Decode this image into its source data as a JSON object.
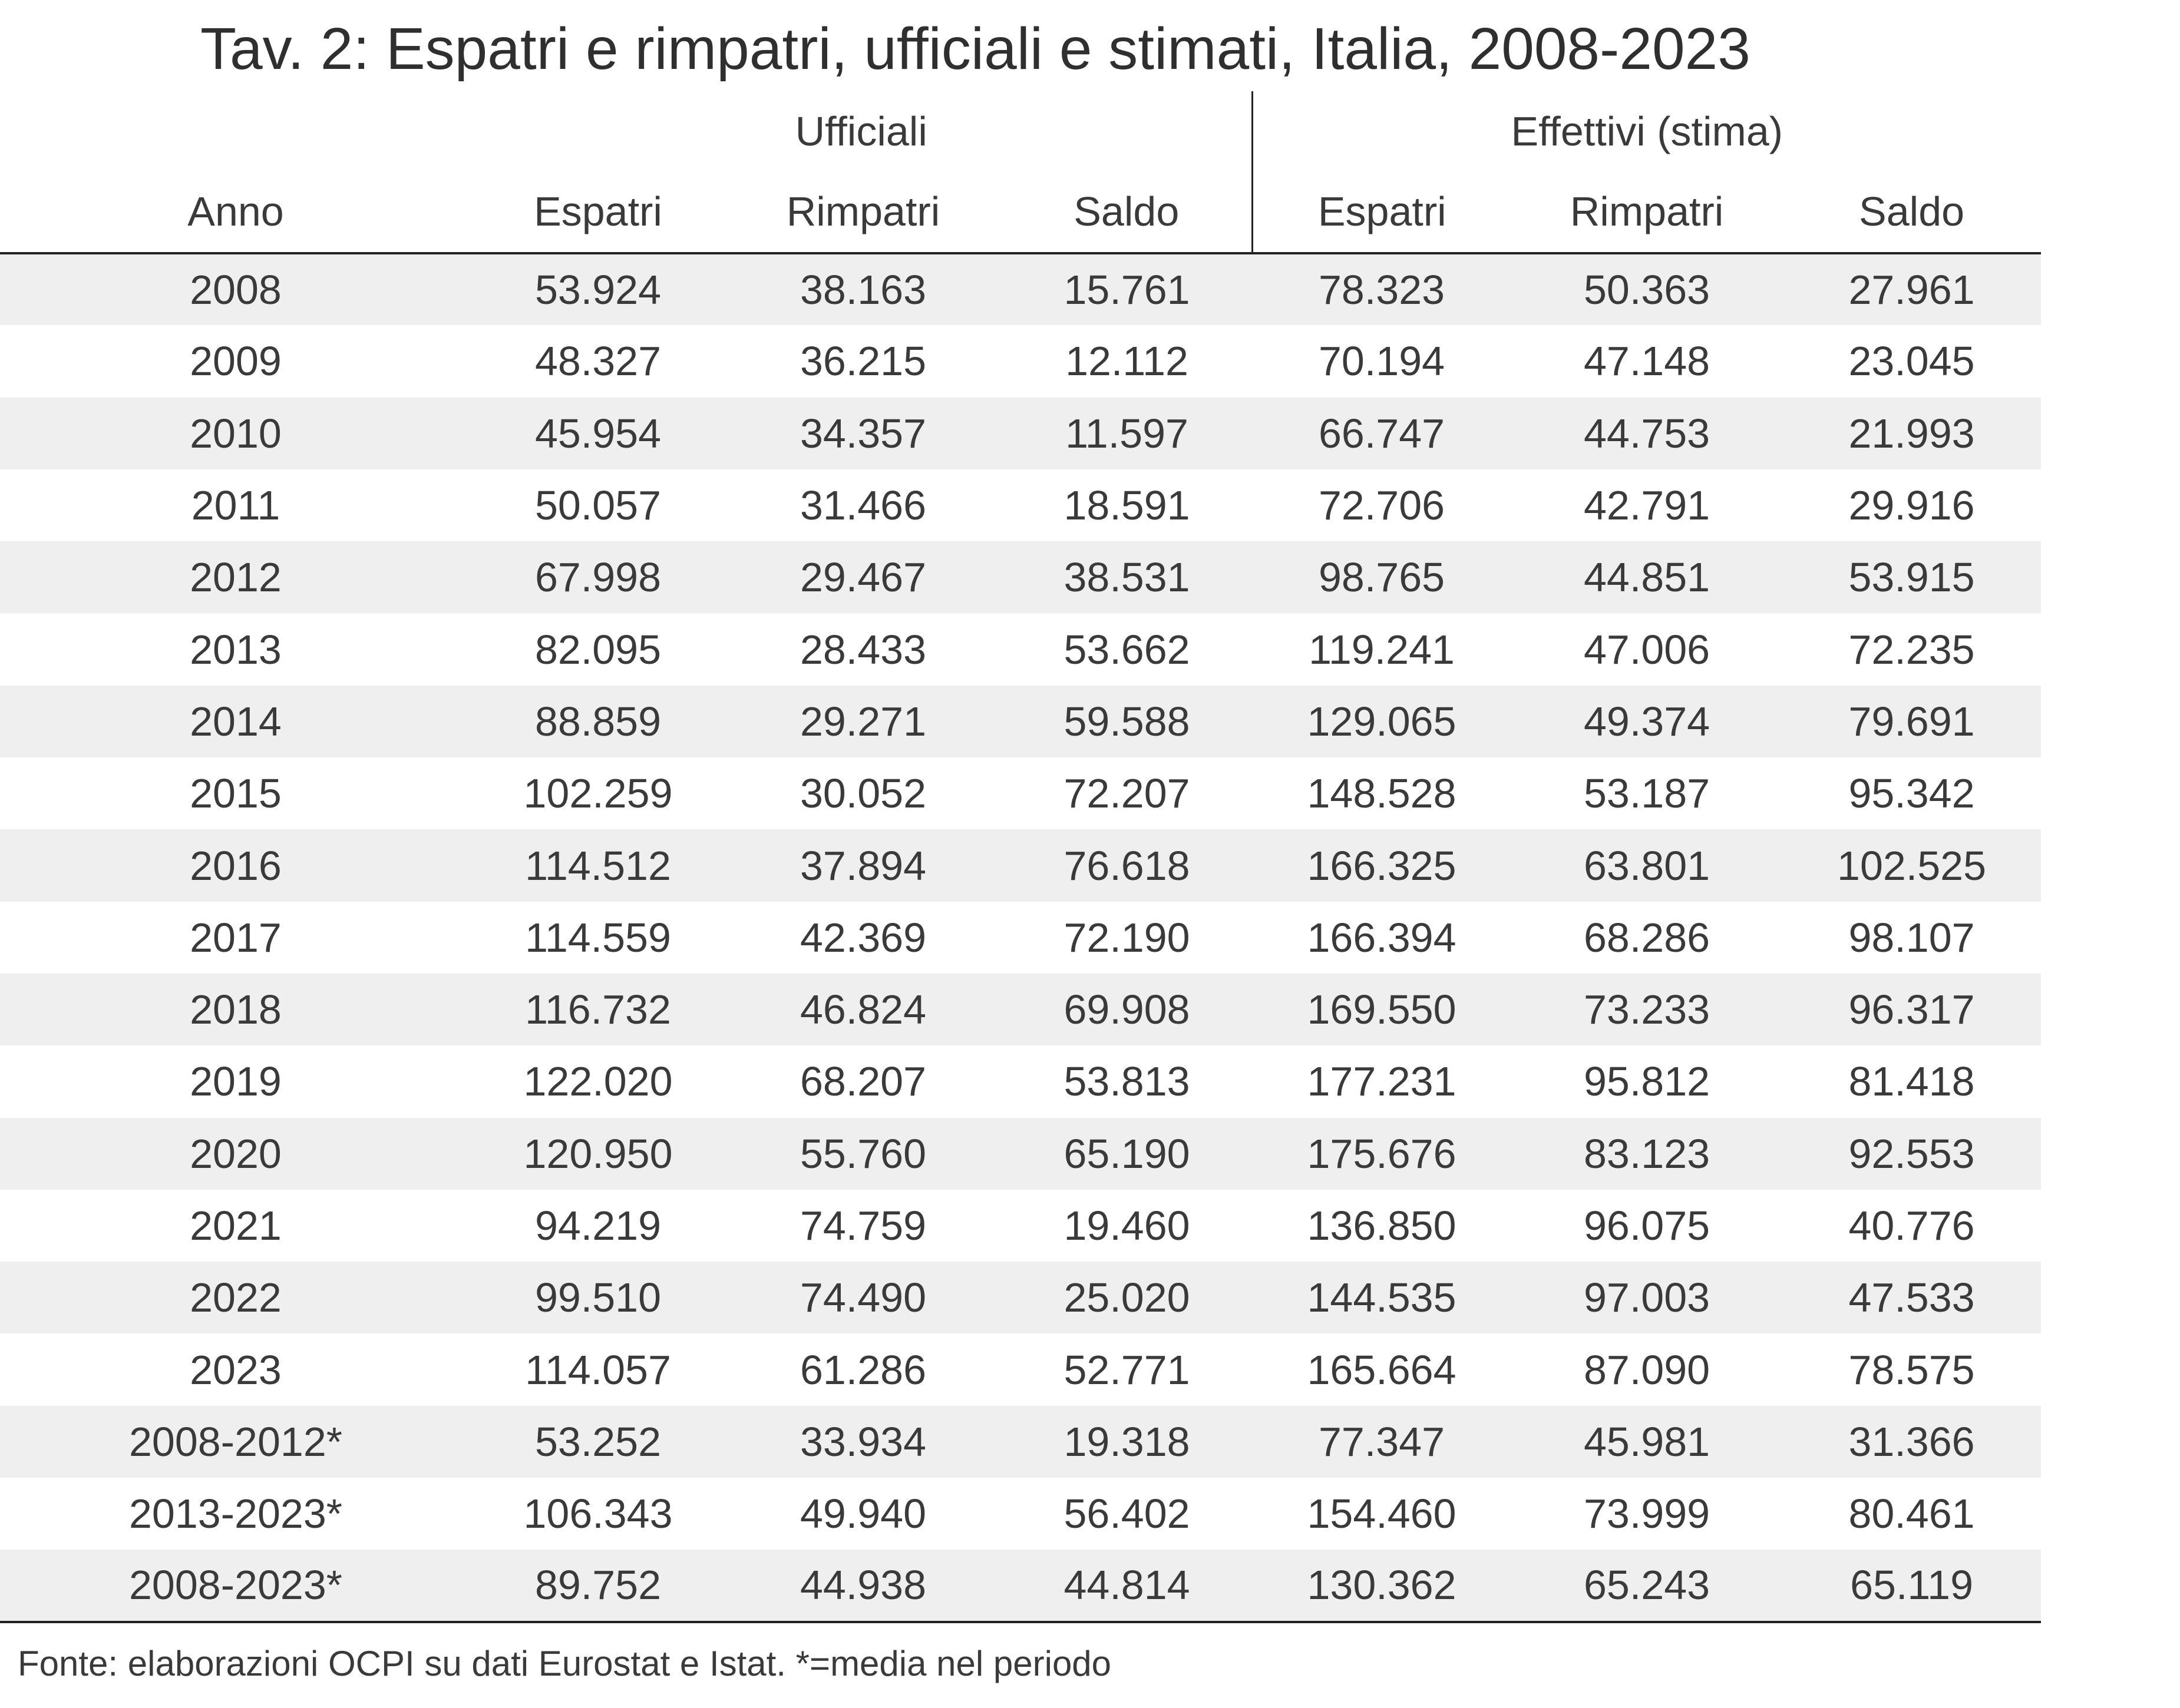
{
  "title": "Tav. 2: Espatri e rimpatri, ufficiali e stimati, Italia, 2008-2023",
  "groups": {
    "ufficiali": "Ufficiali",
    "effettivi": "Effettivi (stima)"
  },
  "columns": [
    "Anno",
    "Espatri",
    "Rimpatri",
    "Saldo",
    "Espatri",
    "Rimpatri",
    "Saldo"
  ],
  "rows": [
    [
      "2008",
      "53.924",
      "38.163",
      "15.761",
      "78.323",
      "50.363",
      "27.961"
    ],
    [
      "2009",
      "48.327",
      "36.215",
      "12.112",
      "70.194",
      "47.148",
      "23.045"
    ],
    [
      "2010",
      "45.954",
      "34.357",
      "11.597",
      "66.747",
      "44.753",
      "21.993"
    ],
    [
      "2011",
      "50.057",
      "31.466",
      "18.591",
      "72.706",
      "42.791",
      "29.916"
    ],
    [
      "2012",
      "67.998",
      "29.467",
      "38.531",
      "98.765",
      "44.851",
      "53.915"
    ],
    [
      "2013",
      "82.095",
      "28.433",
      "53.662",
      "119.241",
      "47.006",
      "72.235"
    ],
    [
      "2014",
      "88.859",
      "29.271",
      "59.588",
      "129.065",
      "49.374",
      "79.691"
    ],
    [
      "2015",
      "102.259",
      "30.052",
      "72.207",
      "148.528",
      "53.187",
      "95.342"
    ],
    [
      "2016",
      "114.512",
      "37.894",
      "76.618",
      "166.325",
      "63.801",
      "102.525"
    ],
    [
      "2017",
      "114.559",
      "42.369",
      "72.190",
      "166.394",
      "68.286",
      "98.107"
    ],
    [
      "2018",
      "116.732",
      "46.824",
      "69.908",
      "169.550",
      "73.233",
      "96.317"
    ],
    [
      "2019",
      "122.020",
      "68.207",
      "53.813",
      "177.231",
      "95.812",
      "81.418"
    ],
    [
      "2020",
      "120.950",
      "55.760",
      "65.190",
      "175.676",
      "83.123",
      "92.553"
    ],
    [
      "2021",
      "94.219",
      "74.759",
      "19.460",
      "136.850",
      "96.075",
      "40.776"
    ],
    [
      "2022",
      "99.510",
      "74.490",
      "25.020",
      "144.535",
      "97.003",
      "47.533"
    ],
    [
      "2023",
      "114.057",
      "61.286",
      "52.771",
      "165.664",
      "87.090",
      "78.575"
    ],
    [
      "2008-2012*",
      "53.252",
      "33.934",
      "19.318",
      "77.347",
      "45.981",
      "31.366"
    ],
    [
      "2013-2023*",
      "106.343",
      "49.940",
      "56.402",
      "154.460",
      "73.999",
      "80.461"
    ],
    [
      "2008-2023*",
      "89.752",
      "44.938",
      "44.814",
      "130.362",
      "65.243",
      "65.119"
    ]
  ],
  "source": "Fonte: elaborazioni OCPI su dati Eurostat e Istat. *=media nel periodo"
}
